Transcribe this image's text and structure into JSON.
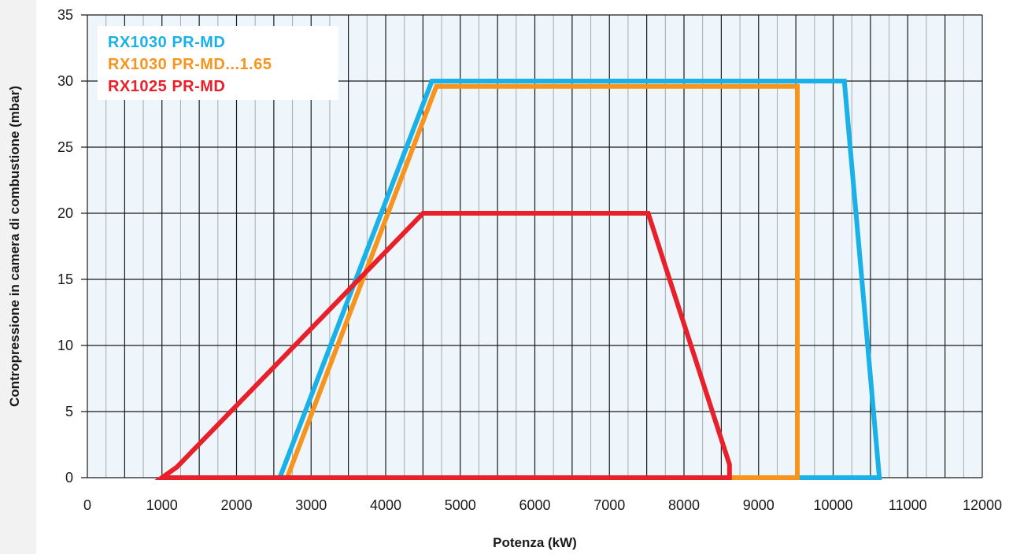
{
  "chart_data": {
    "type": "line",
    "title": "",
    "xlabel": "Potenza (kW)",
    "ylabel": "Contropressione in camera di combustione (mbar)",
    "xlim": [
      0,
      12000
    ],
    "ylim": [
      0,
      35
    ],
    "x_ticks": [
      "0",
      "1000",
      "2000",
      "3000",
      "4000",
      "5000",
      "6000",
      "7000",
      "8000",
      "9000",
      "10000",
      "11000",
      "12000"
    ],
    "y_ticks": [
      "0",
      "5",
      "10",
      "15",
      "20",
      "25",
      "30",
      "35"
    ],
    "grid": true,
    "legend_position": "top-left",
    "series": [
      {
        "name": "RX1030 PR-MD",
        "color": "#1ab0e8",
        "closed": true,
        "x": [
          2580,
          4620,
          10150,
          10620
        ],
        "y": [
          0,
          30,
          30,
          0
        ]
      },
      {
        "name": "RX1030 PR-MD...1.65",
        "color": "#f7941d",
        "closed": true,
        "x": [
          2680,
          4680,
          9520,
          9520
        ],
        "y": [
          0,
          29.6,
          29.6,
          0
        ]
      },
      {
        "name": "RX1025 PR-MD",
        "color": "#e8202a",
        "closed": true,
        "x": [
          1000,
          1200,
          4500,
          7520,
          8610,
          8610
        ],
        "y": [
          0,
          0.8,
          20,
          20,
          1,
          0
        ]
      }
    ]
  }
}
